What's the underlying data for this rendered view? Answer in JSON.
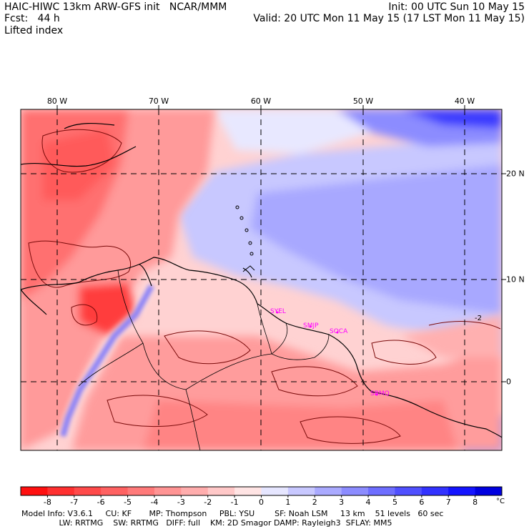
{
  "header": {
    "line1_left": "HAIC-HIWC 13km ARW-GFS init   NCAR/MMM",
    "line1_right": "Init: 00 UTC Sun 10 May 15",
    "line2_left": "Fcst:   44 h",
    "line2_right": "Valid: 20 UTC Mon 11 May 15 (17 LST Mon 11 May 15)",
    "field": "Lifted index"
  },
  "map": {
    "lon_labels": [
      "80 W",
      "70 W",
      "60 W",
      "50 W",
      "40 W"
    ],
    "lat_labels": [
      "20 N",
      "10 N",
      "0"
    ],
    "contour_label": "-2",
    "stations": [
      "SYEL",
      "SMJP",
      "SOCA",
      "SBMQ"
    ],
    "colors": {
      "frame": "#000000",
      "coast": "#000000",
      "contour": "#7a0a0a",
      "station": "#ff00ff",
      "grid": "#000000"
    }
  },
  "colorbar": {
    "ticks": [
      "-8",
      "-7",
      "-6",
      "-5",
      "-4",
      "-3",
      "-2",
      "-1",
      "0",
      "1",
      "2",
      "3",
      "4",
      "5",
      "6",
      "7",
      "8"
    ],
    "unit": "°C",
    "colors": [
      "#ff1010",
      "#ff3030",
      "#ff4a4a",
      "#ff6262",
      "#ff7a7a",
      "#ff9494",
      "#ffadad",
      "#ffc8c8",
      "#ffe4e4",
      "#e6e6ff",
      "#c8c8ff",
      "#aaaaff",
      "#8c8cff",
      "#6e6eff",
      "#5050ff",
      "#3232ff",
      "#1414ff",
      "#0000e0"
    ]
  },
  "footer": {
    "line1": "Model Info: V3.6.1     CU: KF       MP: Thompson     PBL: YSU        SF: Noah LSM     13 km    51 levels   60 sec",
    "line2": "               LW: RRTMG    SW: RRTMG   DIFF: full    KM: 2D Smagor DAMP: Rayleigh3  SFLAY: MM5"
  }
}
